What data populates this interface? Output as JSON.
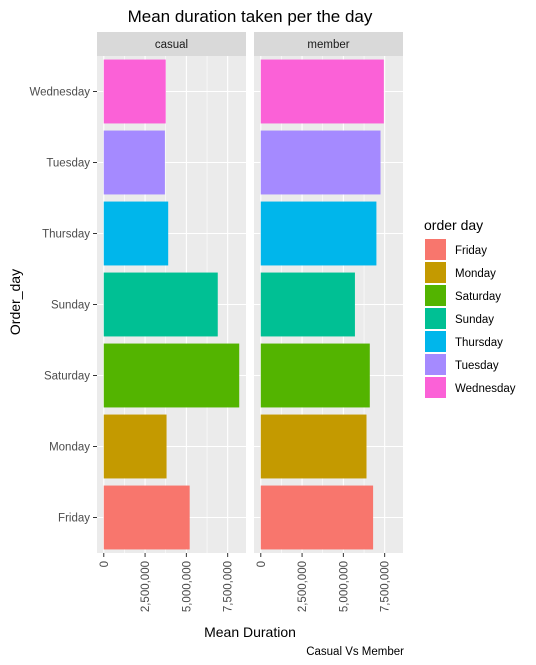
{
  "chart_data": {
    "type": "bar",
    "orientation": "horizontal",
    "title": "Mean duration taken per the day",
    "xlabel": "Mean Duration",
    "ylabel": "Order_day",
    "caption": "Casual Vs Member",
    "categories": [
      "Friday",
      "Monday",
      "Saturday",
      "Sunday",
      "Thursday",
      "Tuesday",
      "Wednesday"
    ],
    "facets": [
      {
        "label": "casual",
        "values": [
          5200000,
          3800000,
          8200000,
          6900000,
          3900000,
          3700000,
          3750000
        ]
      },
      {
        "label": "member",
        "values": [
          6800000,
          6400000,
          6600000,
          5700000,
          7000000,
          7250000,
          7450000
        ]
      }
    ],
    "x_ticks": [
      {
        "value": 0,
        "label": "0"
      },
      {
        "value": 2500000,
        "label": "2,500,000"
      },
      {
        "value": 5000000,
        "label": "5,000,000"
      },
      {
        "value": 7500000,
        "label": "7,500,000"
      }
    ],
    "xlim": [
      -410000,
      8610000
    ],
    "legend": {
      "title": "order day",
      "position": "right",
      "entries": [
        "Friday",
        "Monday",
        "Saturday",
        "Sunday",
        "Thursday",
        "Tuesday",
        "Wednesday"
      ]
    },
    "colors": {
      "Friday": "#F8766D",
      "Monday": "#C49A00",
      "Saturday": "#53B400",
      "Sunday": "#00C094",
      "Thursday": "#00B6EB",
      "Tuesday": "#A58AFF",
      "Wednesday": "#FB61D7"
    },
    "grid": true,
    "panel_background": "#EBEBEB",
    "strip_background": "#D9D9D9"
  }
}
